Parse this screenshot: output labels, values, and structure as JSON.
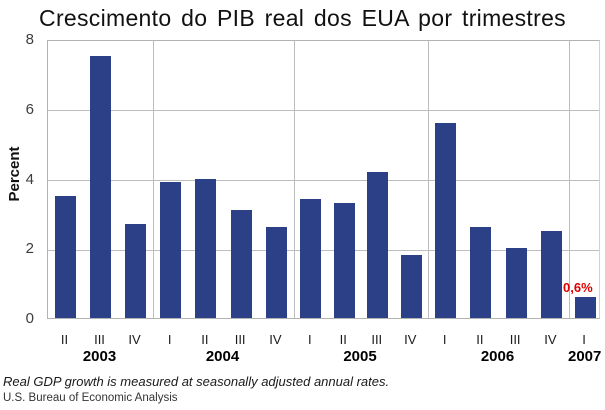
{
  "chart_data": {
    "type": "bar",
    "title": "Crescimento do PIB real dos EUA por trimestres",
    "ylabel": "Percent",
    "xlabel": "",
    "ylim": [
      0,
      8
    ],
    "yticks": [
      0,
      2,
      4,
      6,
      8
    ],
    "grid": true,
    "legend": "none",
    "bar_color": "#2b4087",
    "categories": [
      "2003-II",
      "2003-III",
      "2003-IV",
      "2004-I",
      "2004-II",
      "2004-III",
      "2004-IV",
      "2005-I",
      "2005-II",
      "2005-III",
      "2005-IV",
      "2006-I",
      "2006-II",
      "2006-III",
      "2006-IV",
      "2007-I"
    ],
    "values": [
      3.5,
      7.5,
      2.7,
      3.9,
      4.0,
      3.1,
      2.6,
      3.4,
      3.3,
      4.2,
      1.8,
      5.6,
      2.6,
      2.0,
      2.5,
      0.6
    ],
    "groups": [
      {
        "year": "2003",
        "quarters": [
          "II",
          "III",
          "IV"
        ],
        "values": [
          3.5,
          7.5,
          2.7
        ]
      },
      {
        "year": "2004",
        "quarters": [
          "I",
          "II",
          "III",
          "IV"
        ],
        "values": [
          3.9,
          4.0,
          3.1,
          2.6
        ]
      },
      {
        "year": "2005",
        "quarters": [
          "I",
          "II",
          "III",
          "IV"
        ],
        "values": [
          3.4,
          3.3,
          4.2,
          1.8
        ]
      },
      {
        "year": "2006",
        "quarters": [
          "I",
          "II",
          "III",
          "IV"
        ],
        "values": [
          5.6,
          2.6,
          2.0,
          2.5
        ]
      },
      {
        "year": "2007",
        "quarters": [
          "I"
        ],
        "values": [
          0.6
        ]
      }
    ],
    "annotation": {
      "text": "0,6%",
      "color": "#dd0000",
      "target": "2007-I"
    }
  },
  "footnotes": {
    "note": "Real GDP growth is measured at seasonally adjusted annual rates.",
    "source": "U.S. Bureau of Economic Analysis"
  }
}
